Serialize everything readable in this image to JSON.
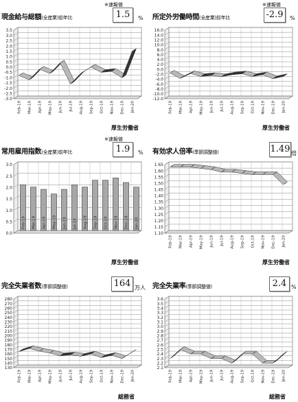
{
  "chart_data": [
    {
      "type": "line",
      "title": "現金給与総額",
      "subtitle": "(全産業)前年比",
      "tag": "※速報値",
      "latest_value": "1.5",
      "unit": "%",
      "source": "厚生労働省",
      "ylim": [
        -3.0,
        3.5
      ],
      "yticks": [
        "3.5",
        "3.0",
        "2.5",
        "2.0",
        "1.5",
        "1.0",
        "0.5",
        "0.0",
        "-0.5",
        "-1.0",
        "-1.5",
        "-2.0",
        "-2.5",
        "-3.0"
      ],
      "categories": [
        "Feb-19",
        "Mar-19",
        "Apr-19",
        "May-19",
        "Jun-19",
        "Jul-19",
        "Aug-19",
        "Sep-19",
        "Oct-19",
        "Nov-19",
        "Dec-19",
        "Jan-20"
      ],
      "values": [
        -0.8,
        -1.2,
        -0.2,
        -0.6,
        0.4,
        -1.6,
        -0.6,
        0.0,
        -0.5,
        -0.4,
        -1.0,
        1.5
      ],
      "grid": true
    },
    {
      "type": "line",
      "title": "所定外労働時間",
      "subtitle": "(全産業)前年比",
      "tag": "※速報値",
      "latest_value": "-2.9",
      "unit": "%",
      "source": "厚生労働省",
      "ylim": [
        -12.0,
        16.0
      ],
      "yticks": [
        "16.0",
        "14.0",
        "12.0",
        "10.0",
        "8.0",
        "6.0",
        "4.0",
        "2.0",
        "0.0",
        "-2.0",
        "-4.0",
        "-6.0",
        "-8.0",
        "-10.0",
        "-12.0"
      ],
      "categories": [
        "Feb-19",
        "Mar-19",
        "Apr-19",
        "May-19",
        "Jun-19",
        "Jul-19",
        "Aug-19",
        "Sep-19",
        "Oct-19",
        "Nov-19",
        "Dec-19",
        "Jan-20"
      ],
      "values": [
        -1.5,
        -3.7,
        -1.7,
        -2.9,
        -2.5,
        -3.0,
        -2.2,
        -1.8,
        -2.9,
        -2.2,
        -3.8,
        -2.9
      ],
      "grid": true
    },
    {
      "type": "bar",
      "title": "常用雇用指数",
      "subtitle": "(全産業)前年比",
      "tag": "※速報値",
      "latest_value": "1.9",
      "unit": "%",
      "source": "厚生労働省",
      "ylim": [
        0.0,
        3.0
      ],
      "yticks": [
        "3.0",
        "2.5",
        "2.0",
        "1.5",
        "1.0",
        "0.5",
        "0.0"
      ],
      "categories": [
        "Feb-19",
        "Mar-19",
        "Apr-19",
        "May-19",
        "Jun-19",
        "Jul-19",
        "Aug-19",
        "Sep-19",
        "Oct-19",
        "Nov-19",
        "Dec-19",
        "Jan-20"
      ],
      "values": [
        2.0,
        1.9,
        1.8,
        1.6,
        1.8,
        2.0,
        1.9,
        2.2,
        2.2,
        2.3,
        2.1,
        1.9
      ],
      "grid": true
    },
    {
      "type": "line",
      "title": "有効求人倍率",
      "subtitle": "(季節調整値)",
      "tag": "",
      "latest_value": "1.49",
      "unit": "倍",
      "source": "厚生労働省",
      "ylim": [
        1.1,
        1.65
      ],
      "yticks": [
        "1.65",
        "1.60",
        "1.55",
        "1.50",
        "1.45",
        "1.40",
        "1.35",
        "1.30",
        "1.25",
        "1.20",
        "1.15",
        "1.10"
      ],
      "categories": [
        "Feb-19",
        "Mar-19",
        "Apr-19",
        "May-19",
        "Jun-19",
        "Jul-19",
        "Aug-19",
        "Sep-19",
        "Oct-19",
        "Nov-19",
        "Dec-19",
        "Jan-20"
      ],
      "values": [
        1.63,
        1.63,
        1.63,
        1.62,
        1.61,
        1.59,
        1.59,
        1.58,
        1.57,
        1.57,
        1.57,
        1.49
      ],
      "grid": true
    },
    {
      "type": "line",
      "title": "完全失業者数",
      "subtitle": "(季節調整値)",
      "tag": "",
      "latest_value": "164",
      "unit": "万人",
      "source": "総務省",
      "ylim": [
        130,
        280
      ],
      "yticks": [
        "280",
        "270",
        "260",
        "250",
        "240",
        "230",
        "220",
        "210",
        "200",
        "190",
        "180",
        "170",
        "160",
        "150",
        "140",
        "130"
      ],
      "categories": [
        "Feb-19",
        "Mar-19",
        "Apr-19",
        "May-19",
        "Jun-19",
        "Jul-19",
        "Aug-19",
        "Sep-19",
        "Oct-19",
        "Nov-19",
        "Dec-19",
        "Jan-20"
      ],
      "values": [
        165,
        172,
        166,
        162,
        156,
        158,
        155,
        160,
        152,
        157,
        150,
        164
      ],
      "grid": true
    },
    {
      "type": "line",
      "title": "完全失業率",
      "subtitle": "(季節調整値)",
      "tag": "",
      "latest_value": "2.4",
      "unit": "%",
      "source": "総務省",
      "ylim": [
        2.1,
        3.6
      ],
      "yticks": [
        "3.6",
        "3.5",
        "3.4",
        "3.3",
        "3.2",
        "3.1",
        "3.0",
        "2.9",
        "2.8",
        "2.7",
        "2.6",
        "2.5",
        "2.4",
        "2.3",
        "2.2",
        "2.1"
      ],
      "categories": [
        "Feb-19",
        "Mar-19",
        "Apr-19",
        "May-19",
        "Jun-19",
        "Jul-19",
        "Aug-19",
        "Sep-19",
        "Oct-19",
        "Nov-19",
        "Dec-19",
        "Jan-20"
      ],
      "values": [
        2.3,
        2.5,
        2.4,
        2.4,
        2.3,
        2.3,
        2.2,
        2.4,
        2.4,
        2.2,
        2.2,
        2.4
      ],
      "grid": true
    }
  ]
}
